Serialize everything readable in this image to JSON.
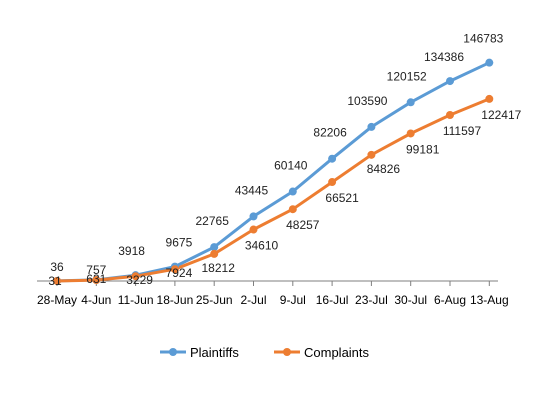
{
  "chart_data": {
    "type": "line",
    "title": "",
    "xlabel": "",
    "ylabel": "",
    "categories": [
      "28-May",
      "4-Jun",
      "11-Jun",
      "18-Jun",
      "25-Jun",
      "2-Jul",
      "9-Jul",
      "16-Jul",
      "23-Jul",
      "30-Jul",
      "6-Aug",
      "13-Aug"
    ],
    "ylim": [
      0,
      160000
    ],
    "grid": false,
    "legend": "bottom",
    "series": [
      {
        "name": "Plaintiffs",
        "color": "#5B9BD5",
        "values": [
          36,
          757,
          3918,
          9675,
          22765,
          43445,
          60140,
          82206,
          103590,
          120152,
          134386,
          146783
        ],
        "labels": [
          "36",
          "757",
          "3918",
          "9675",
          "22765",
          "43445",
          "60140",
          "82206",
          "103590",
          "120152",
          "134386",
          "146783"
        ]
      },
      {
        "name": "Complaints",
        "color": "#ED7D31",
        "values": [
          31,
          631,
          3229,
          7924,
          18212,
          34610,
          48257,
          66521,
          84826,
          99181,
          111597,
          122417
        ],
        "labels": [
          "31",
          "631",
          "3229",
          "7924",
          "18212",
          "34610",
          "48257",
          "66521",
          "84826",
          "99181",
          "111597",
          "122417"
        ]
      }
    ]
  }
}
